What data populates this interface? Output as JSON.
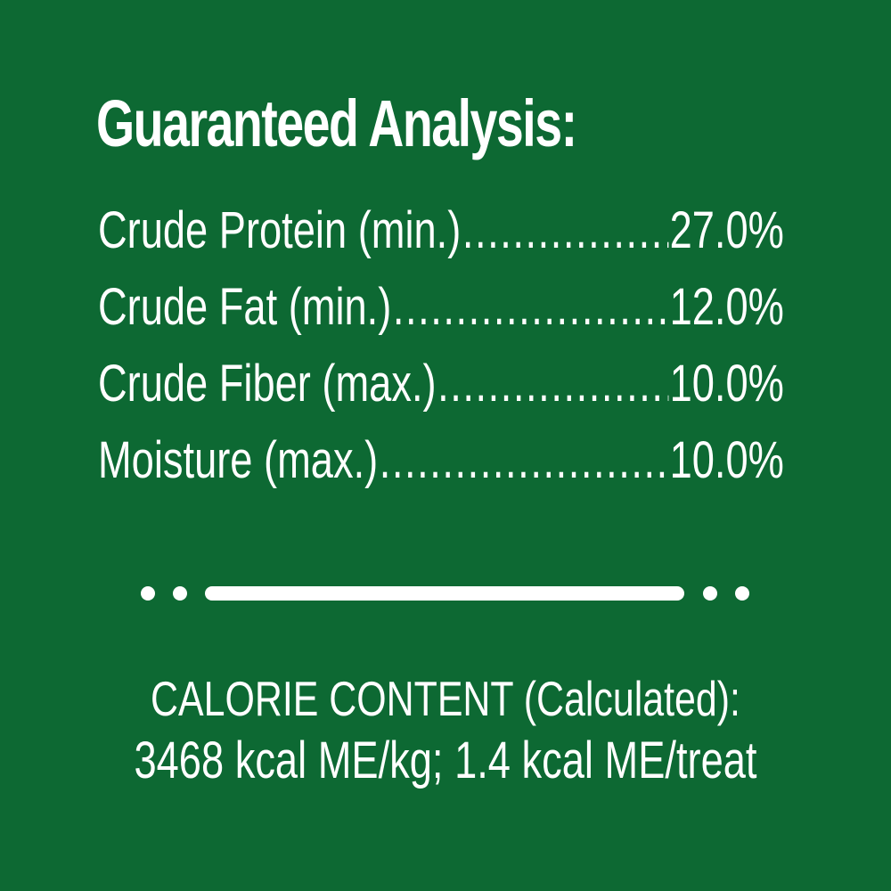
{
  "colors": {
    "background": "#0d6933",
    "text": "#ffffff"
  },
  "title": "Guaranteed Analysis:",
  "leader_dots": "................................................................",
  "analysis_rows": [
    {
      "label": "Crude Protein (min.)",
      "value": "27.0%"
    },
    {
      "label": "Crude Fat (min.)",
      "value": "12.0%"
    },
    {
      "label": "Crude Fiber (max.)",
      "value": "10.0%"
    },
    {
      "label": "Moisture (max.)",
      "value": "10.0%"
    }
  ],
  "calorie_content": {
    "line1": "CALORIE CONTENT (Calculated):",
    "line2": "3468 kcal ME/kg; 1.4 kcal ME/treat"
  }
}
